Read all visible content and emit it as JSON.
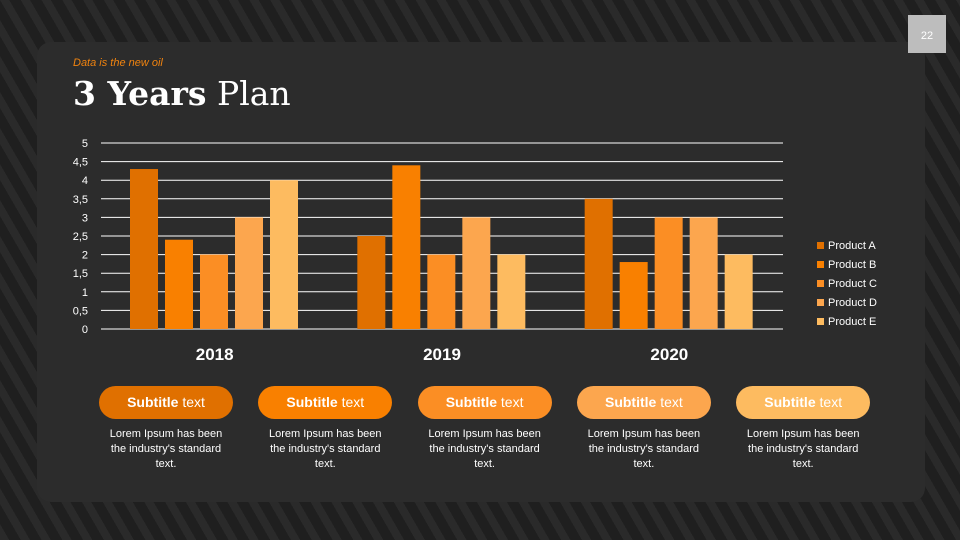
{
  "page_number": "22",
  "kicker": "Data is the new oil",
  "title_bold": "3 Years",
  "title_rest": "Plan",
  "chart_data": {
    "type": "bar",
    "categories": [
      "2018",
      "2019",
      "2020"
    ],
    "series": [
      {
        "name": "Product A",
        "color": "#E07000",
        "values": [
          4.3,
          2.5,
          3.5
        ]
      },
      {
        "name": "Product B",
        "color": "#F98000",
        "values": [
          2.4,
          4.4,
          1.8
        ]
      },
      {
        "name": "Product C",
        "color": "#FB8E24",
        "values": [
          2,
          2,
          3
        ]
      },
      {
        "name": "Product D",
        "color": "#FCA64E",
        "values": [
          3,
          3,
          3
        ]
      },
      {
        "name": "Product E",
        "color": "#FDBB60",
        "values": [
          4,
          2,
          2
        ]
      }
    ],
    "ylim": [
      0,
      5
    ],
    "yticks": [
      "0",
      "0,5",
      "1",
      "1,5",
      "2",
      "2,5",
      "3",
      "3,5",
      "4",
      "4,5",
      "5"
    ],
    "grid": true,
    "legend": "right"
  },
  "cards": [
    {
      "bold": "Subtitle",
      "rest": "text",
      "color": "#E07000",
      "text": "Lorem Ipsum has been the industry's standard text."
    },
    {
      "bold": "Subtitle",
      "rest": "text",
      "color": "#F98000",
      "text": "Lorem Ipsum has been the industry's standard text."
    },
    {
      "bold": "Subtitle",
      "rest": "text",
      "color": "#FB8E24",
      "text": "Lorem Ipsum has been the industry's standard text."
    },
    {
      "bold": "Subtitle",
      "rest": "text",
      "color": "#FCA64E",
      "text": "Lorem Ipsum has been the industry's standard text."
    },
    {
      "bold": "Subtitle",
      "rest": "text",
      "color": "#FDBB60",
      "text": "Lorem Ipsum has been the industry's standard text."
    }
  ]
}
